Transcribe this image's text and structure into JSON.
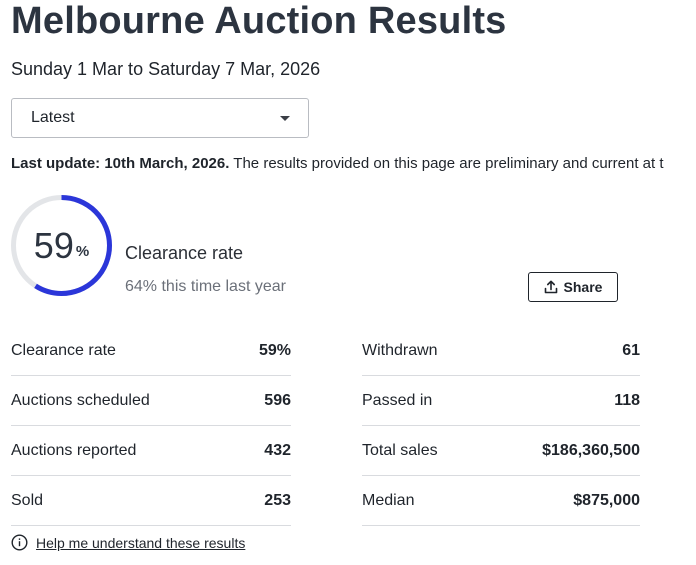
{
  "page": {
    "title": "Melbourne Auction Results",
    "date_range": "Sunday 1 Mar to Saturday 7 Mar, 2026"
  },
  "filter": {
    "selected": "Latest",
    "icon": "chevron-down-icon"
  },
  "update": {
    "label": "Last update: 10th March, 2026.",
    "text": " The results provided on this page are preliminary and current at t"
  },
  "clearance": {
    "value": 59,
    "number": "59",
    "percent_sign": "%",
    "label": "Clearance rate",
    "last_year": "64% this time last year",
    "ring_color": "#2b36d9",
    "track_color": "#e3e5e8"
  },
  "share": {
    "label": "Share",
    "icon": "upload-icon"
  },
  "stats_left": [
    {
      "label": "Clearance rate",
      "value": "59%"
    },
    {
      "label": "Auctions scheduled",
      "value": "596"
    },
    {
      "label": "Auctions reported",
      "value": "432"
    },
    {
      "label": "Sold",
      "value": "253"
    }
  ],
  "stats_right": [
    {
      "label": "Withdrawn",
      "value": "61"
    },
    {
      "label": "Passed in",
      "value": "118"
    },
    {
      "label": "Total sales",
      "value": "$186,360,500"
    },
    {
      "label": "Median",
      "value": "$875,000"
    }
  ],
  "help": {
    "label": "Help me understand these results",
    "icon": "info-icon"
  }
}
